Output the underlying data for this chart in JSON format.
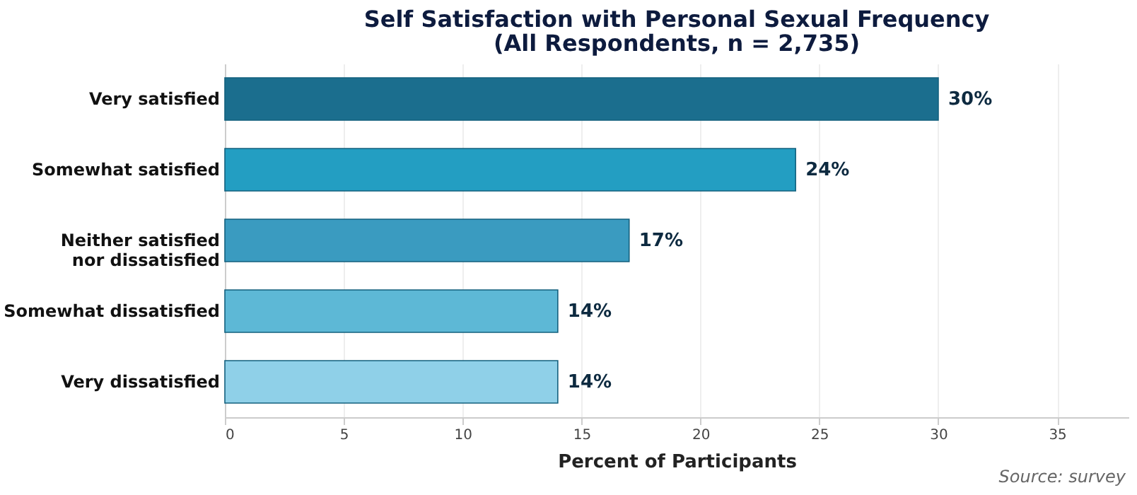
{
  "chart_data": {
    "type": "bar",
    "orientation": "horizontal",
    "title": "Self Satisfaction with Personal Sexual Frequency",
    "subtitle": "(All Respondents, n = 2,735)",
    "xlabel": "Percent of Participants",
    "categories": [
      "Very satisfied",
      "Somewhat satisfied",
      "Neither satisfied\nnor dissatisfied",
      "Somewhat dissatisfied",
      "Very dissatisfied"
    ],
    "values": [
      30,
      24,
      17,
      14,
      14
    ],
    "colors": [
      "#1b6e8e",
      "#239ec2",
      "#3a9bc0",
      "#5db8d6",
      "#8fd0e8"
    ],
    "value_labels": [
      "30%",
      "24%",
      "17%",
      "14%",
      "14%"
    ],
    "xlim": [
      0,
      38
    ],
    "xticks": [
      0,
      5,
      10,
      15,
      20,
      25,
      30,
      35
    ],
    "grid": "x",
    "annotations": [
      "Source: survey"
    ]
  }
}
